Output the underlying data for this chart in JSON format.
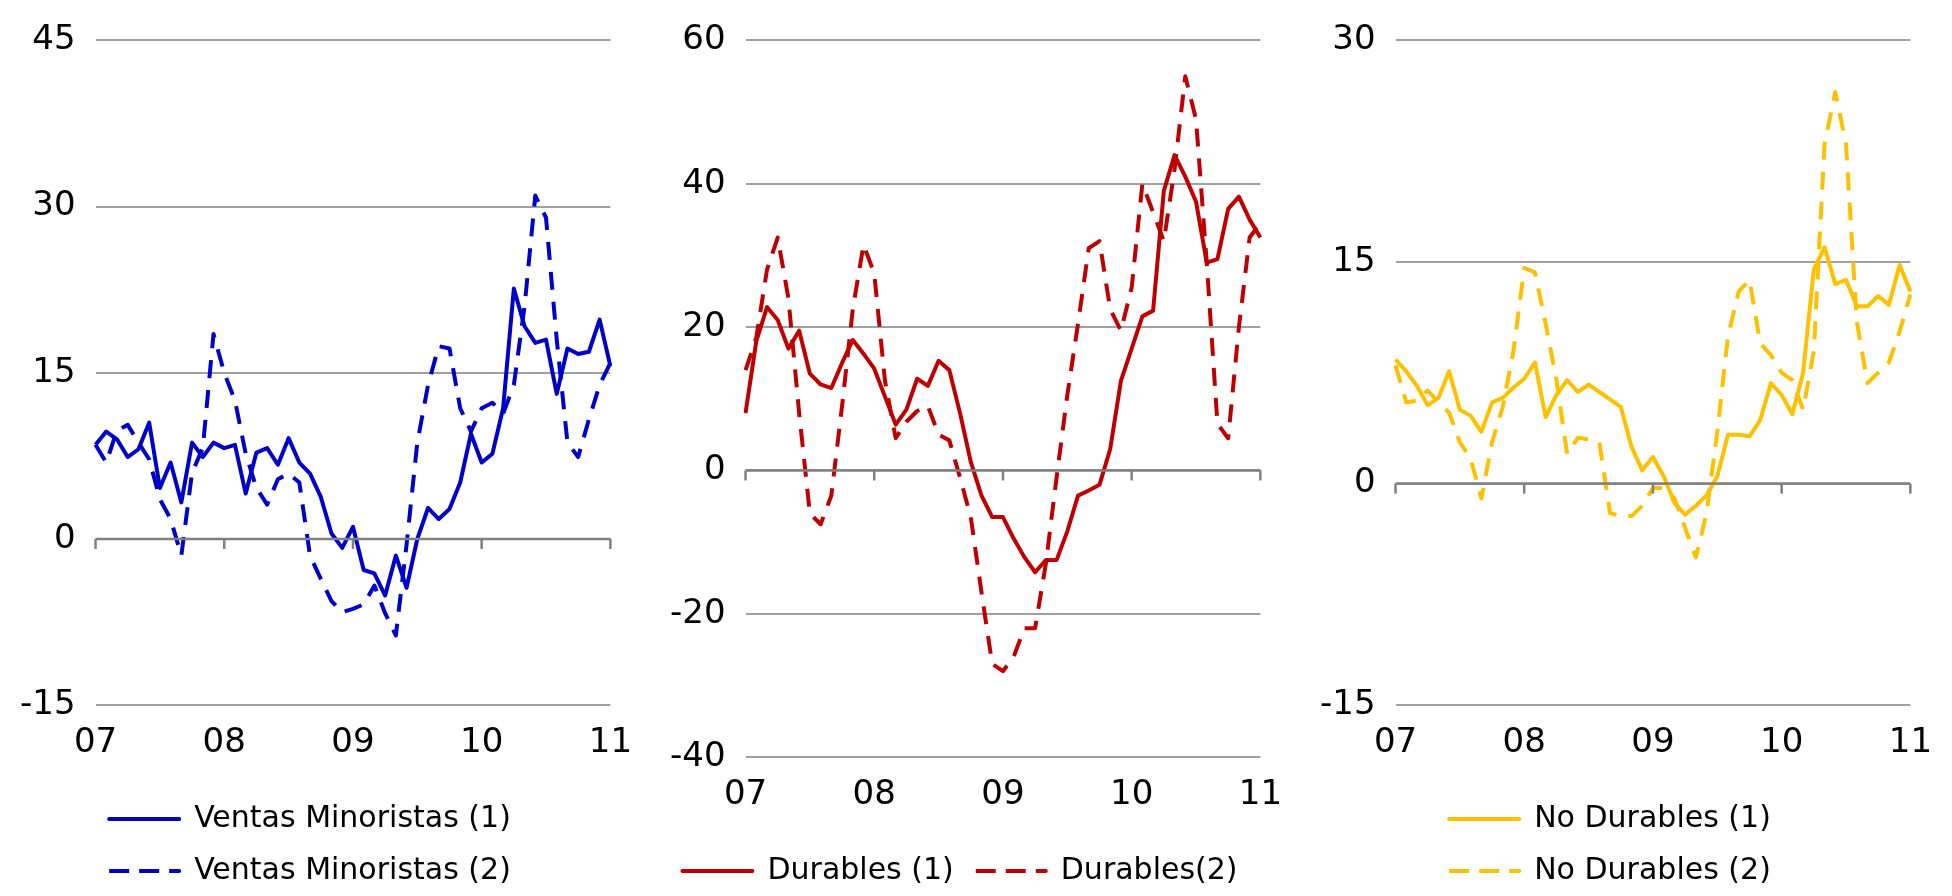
{
  "chart_data": [
    {
      "type": "line",
      "categories": [
        "07",
        null,
        null,
        null,
        null,
        null,
        null,
        null,
        null,
        null,
        null,
        null,
        "08",
        null,
        null,
        null,
        null,
        null,
        null,
        null,
        null,
        null,
        null,
        null,
        "09",
        null,
        null,
        null,
        null,
        null,
        null,
        null,
        null,
        null,
        null,
        null,
        "10",
        null,
        null,
        null,
        null,
        null,
        null,
        null,
        null,
        null,
        null,
        null,
        "11"
      ],
      "ylim": [
        -15,
        45
      ],
      "yticks": [
        -15,
        0,
        15,
        30,
        45
      ],
      "grid": "y",
      "legend": "bottom",
      "series": [
        {
          "name": "Ventas Minoristas (1)",
          "color": "#0000cc",
          "line_style": "solid",
          "values": [
            8.5,
            9.7,
            9,
            7.4,
            8.1,
            10.5,
            4.6,
            6.9,
            3.3,
            8.7,
            7.4,
            8.7,
            8.2,
            8.5,
            4.1,
            7.8,
            8.2,
            6.7,
            9.1,
            6.9,
            5.9,
            3.8,
            0.5,
            -0.8,
            1.1,
            -2.8,
            -3.1,
            -5.1,
            -1.5,
            -4.4,
            0,
            2.8,
            1.8,
            2.7,
            5.1,
            9.5,
            6.9,
            7.7,
            11.8,
            22.6,
            19.2,
            17.7,
            18,
            13.1,
            17.2,
            16.7,
            16.9,
            19.8,
            15.6
          ]
        },
        {
          "name": "Ventas Minoristas (2)",
          "color": "#0000cc",
          "line_style": "dashed",
          "values": [
            8.5,
            6.9,
            9.8,
            10.3,
            8.7,
            7.2,
            3.6,
            1.8,
            -1.5,
            6,
            8.2,
            18.5,
            15,
            12.5,
            7.7,
            4.6,
            3.1,
            5.4,
            5.9,
            5.1,
            -1.5,
            -3.6,
            -5.6,
            -6.6,
            -6.3,
            -5.9,
            -4.2,
            -6.7,
            -8.7,
            -0.5,
            8.7,
            13.9,
            17.4,
            17.2,
            11.8,
            9.7,
            11.8,
            12.3,
            11.3,
            13.9,
            21,
            31,
            29,
            18,
            8.7,
            7.4,
            10.8,
            13.9,
            15.9
          ]
        }
      ]
    },
    {
      "type": "line",
      "categories": [
        "07",
        null,
        null,
        null,
        null,
        null,
        null,
        null,
        null,
        null,
        null,
        null,
        "08",
        null,
        null,
        null,
        null,
        null,
        null,
        null,
        null,
        null,
        null,
        null,
        "09",
        null,
        null,
        null,
        null,
        null,
        null,
        null,
        null,
        null,
        null,
        null,
        "10",
        null,
        null,
        null,
        null,
        null,
        null,
        null,
        null,
        null,
        null,
        null,
        "11"
      ],
      "ylim": [
        -40,
        60
      ],
      "yticks": [
        -40,
        -20,
        0,
        20,
        40,
        60
      ],
      "grid": "y",
      "legend": "bottom",
      "series": [
        {
          "name": "Durables (1)",
          "color": "#c00000",
          "line_style": "solid",
          "values": [
            8,
            18,
            22.8,
            21,
            17,
            19.5,
            13.5,
            12,
            11.5,
            15,
            18.2,
            16.3,
            14.2,
            10.3,
            6.4,
            8.5,
            12.8,
            11.8,
            15.3,
            14,
            8,
            1.2,
            -3.5,
            -6.5,
            -6.5,
            -9.5,
            -12.1,
            -14.2,
            -12.5,
            -12.5,
            -8.5,
            -3.5,
            -2.8,
            -2,
            3,
            12.5,
            17,
            21.5,
            22.3,
            39,
            44,
            41,
            37.5,
            29,
            29.5,
            36.5,
            38.2,
            35,
            32.5
          ]
        },
        {
          "name": "Durables(2)",
          "color": "#c00000",
          "line_style": "dashed",
          "values": [
            14,
            18.5,
            28,
            32.5,
            24,
            8,
            -6,
            -7.5,
            -3.5,
            9,
            22.5,
            31.5,
            27.5,
            12.5,
            4.5,
            6.8,
            8.3,
            9,
            5,
            4.2,
            -1,
            -6.5,
            -17,
            -27,
            -28,
            -26,
            -22,
            -22,
            -13,
            -1,
            10.5,
            20.5,
            31,
            32,
            22.5,
            19.5,
            25.5,
            40,
            36,
            32,
            42,
            55,
            49,
            29,
            6.5,
            4.5,
            20,
            32.5,
            34.5
          ]
        }
      ]
    },
    {
      "type": "line",
      "categories": [
        "07",
        null,
        null,
        null,
        null,
        null,
        null,
        null,
        null,
        null,
        null,
        null,
        "08",
        null,
        null,
        null,
        null,
        null,
        null,
        null,
        null,
        null,
        null,
        null,
        "09",
        null,
        null,
        null,
        null,
        null,
        null,
        null,
        null,
        null,
        null,
        null,
        "10",
        null,
        null,
        null,
        null,
        null,
        null,
        null,
        null,
        null,
        null,
        null,
        "11"
      ],
      "ylim": [
        -15,
        30
      ],
      "yticks": [
        -15,
        0,
        15,
        30
      ],
      "grid": "y",
      "legend": "bottom",
      "series": [
        {
          "name": "No Durables (1)",
          "color": "#ffc000",
          "line_style": "solid",
          "values": [
            8.4,
            7.6,
            6.6,
            5.3,
            5.8,
            7.6,
            5,
            4.6,
            3.5,
            5.5,
            5.8,
            6.5,
            7.1,
            8.2,
            4.5,
            6,
            7,
            6.2,
            6.7,
            6.2,
            5.7,
            5.2,
            2.5,
            0.9,
            1.8,
            0.5,
            -1.3,
            -2.1,
            -1.5,
            -0.8,
            0.5,
            3.3,
            3.3,
            3.2,
            4.3,
            6.8,
            6,
            4.7,
            7.5,
            14.5,
            16,
            13.5,
            13.8,
            12,
            12,
            12.7,
            12.1,
            14.8,
            13
          ]
        },
        {
          "name": "No Durables (2)",
          "color": "#ffc000",
          "line_style": "dashed",
          "values": [
            8,
            5.5,
            5.6,
            6.3,
            5.5,
            4.8,
            2.8,
            1.7,
            -1,
            2.8,
            5.2,
            9,
            14.6,
            14.3,
            10.8,
            7,
            2,
            3.1,
            3,
            2.8,
            -2,
            -2.2,
            -2.2,
            -1.5,
            -0.3,
            -0.3,
            -1,
            -3,
            -5,
            -2,
            3.5,
            10,
            13,
            13.8,
            9.5,
            8.7,
            7.5,
            7,
            5,
            9,
            23,
            26.5,
            23,
            11,
            6.8,
            7.5,
            8.2,
            10.3,
            12.8
          ]
        }
      ]
    }
  ]
}
